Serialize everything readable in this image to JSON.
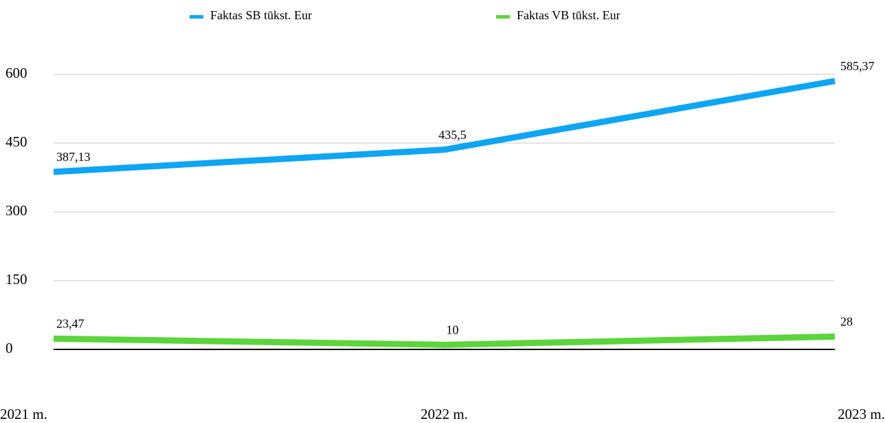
{
  "chart_data": {
    "type": "line",
    "categories": [
      "2021 m.",
      "2022 m.",
      "2023 m."
    ],
    "series": [
      {
        "name": "Faktas SB tūkst. Eur",
        "color": "#0ea5f5",
        "values": [
          387.13,
          435.5,
          585.37
        ],
        "value_labels": [
          "387,13",
          "435,5",
          "585,37"
        ]
      },
      {
        "name": "Faktas VB tūkst. Eur",
        "color": "#5cd43c",
        "values": [
          23.47,
          10,
          28
        ],
        "value_labels": [
          "23,47",
          "10",
          "28"
        ]
      }
    ],
    "ylim": [
      0,
      600
    ],
    "yticks": [
      0,
      150,
      300,
      450,
      600
    ],
    "grid": true,
    "legend": "top"
  }
}
